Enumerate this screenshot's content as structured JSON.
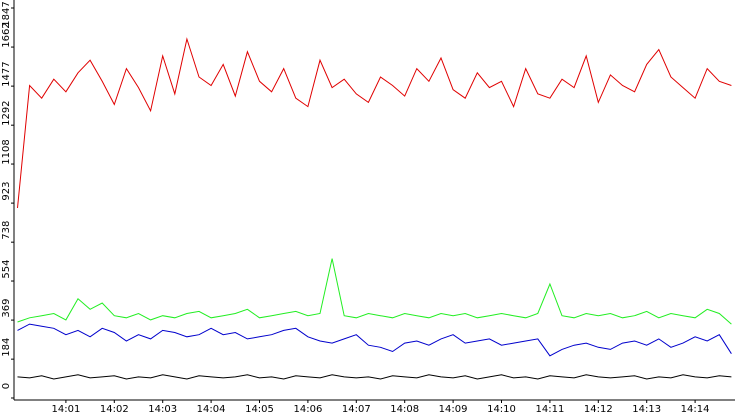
{
  "chart_data": {
    "type": "line",
    "categories": [
      null,
      null,
      null,
      null,
      "14:01",
      null,
      null,
      null,
      "14:02",
      null,
      null,
      null,
      "14:03",
      null,
      null,
      null,
      "14:04",
      null,
      null,
      null,
      "14:05",
      null,
      null,
      null,
      "14:06",
      null,
      null,
      null,
      "14:07",
      null,
      null,
      null,
      "14:08",
      null,
      null,
      null,
      "14:09",
      null,
      null,
      null,
      "14:10",
      null,
      null,
      null,
      "14:11",
      null,
      null,
      null,
      "14:12",
      null,
      null,
      null,
      "14:13",
      null,
      null,
      null,
      "14:14",
      null,
      null,
      null
    ],
    "series": [
      {
        "color": "#e00000",
        "values": [
          900,
          1480,
          1420,
          1510,
          1450,
          1540,
          1600,
          1500,
          1390,
          1560,
          1470,
          1360,
          1620,
          1440,
          1700,
          1520,
          1480,
          1580,
          1430,
          1640,
          1500,
          1450,
          1560,
          1420,
          1380,
          1600,
          1470,
          1510,
          1440,
          1400,
          1520,
          1480,
          1430,
          1560,
          1500,
          1610,
          1460,
          1420,
          1540,
          1470,
          1500,
          1380,
          1560,
          1440,
          1420,
          1510,
          1470,
          1620,
          1400,
          1530,
          1480,
          1450,
          1580,
          1650,
          1520,
          1470,
          1420,
          1560,
          1500,
          1480
        ]
      },
      {
        "color": "#22ee22",
        "values": [
          360,
          380,
          390,
          400,
          370,
          470,
          420,
          450,
          390,
          380,
          400,
          370,
          390,
          380,
          400,
          410,
          380,
          390,
          400,
          420,
          380,
          390,
          400,
          410,
          390,
          400,
          660,
          390,
          380,
          400,
          390,
          380,
          400,
          390,
          380,
          400,
          390,
          400,
          380,
          390,
          400,
          390,
          380,
          400,
          540,
          390,
          380,
          400,
          390,
          400,
          380,
          390,
          410,
          380,
          400,
          390,
          380,
          420,
          400,
          350
        ]
      },
      {
        "color": "#0000cc",
        "values": [
          320,
          350,
          340,
          330,
          300,
          320,
          290,
          330,
          310,
          270,
          300,
          280,
          320,
          310,
          290,
          300,
          330,
          300,
          310,
          280,
          290,
          300,
          320,
          330,
          290,
          270,
          260,
          280,
          300,
          250,
          240,
          220,
          260,
          270,
          250,
          280,
          300,
          260,
          270,
          280,
          250,
          260,
          270,
          280,
          200,
          230,
          250,
          260,
          240,
          230,
          260,
          270,
          250,
          280,
          240,
          260,
          290,
          270,
          300,
          210
        ]
      },
      {
        "color": "#000000",
        "values": [
          100,
          95,
          105,
          90,
          100,
          110,
          95,
          100,
          105,
          90,
          100,
          95,
          110,
          100,
          90,
          105,
          100,
          95,
          100,
          110,
          95,
          100,
          90,
          105,
          100,
          95,
          110,
          100,
          95,
          100,
          90,
          105,
          100,
          95,
          110,
          100,
          95,
          105,
          90,
          100,
          110,
          95,
          100,
          90,
          105,
          100,
          95,
          110,
          100,
          95,
          100,
          105,
          90,
          100,
          95,
          110,
          100,
          95,
          105,
          100
        ]
      }
    ],
    "ylim": [
      0,
      1847
    ],
    "yticks": [
      0,
      184,
      369,
      554,
      738,
      923,
      1108,
      1292,
      1477,
      1662,
      1847
    ]
  }
}
